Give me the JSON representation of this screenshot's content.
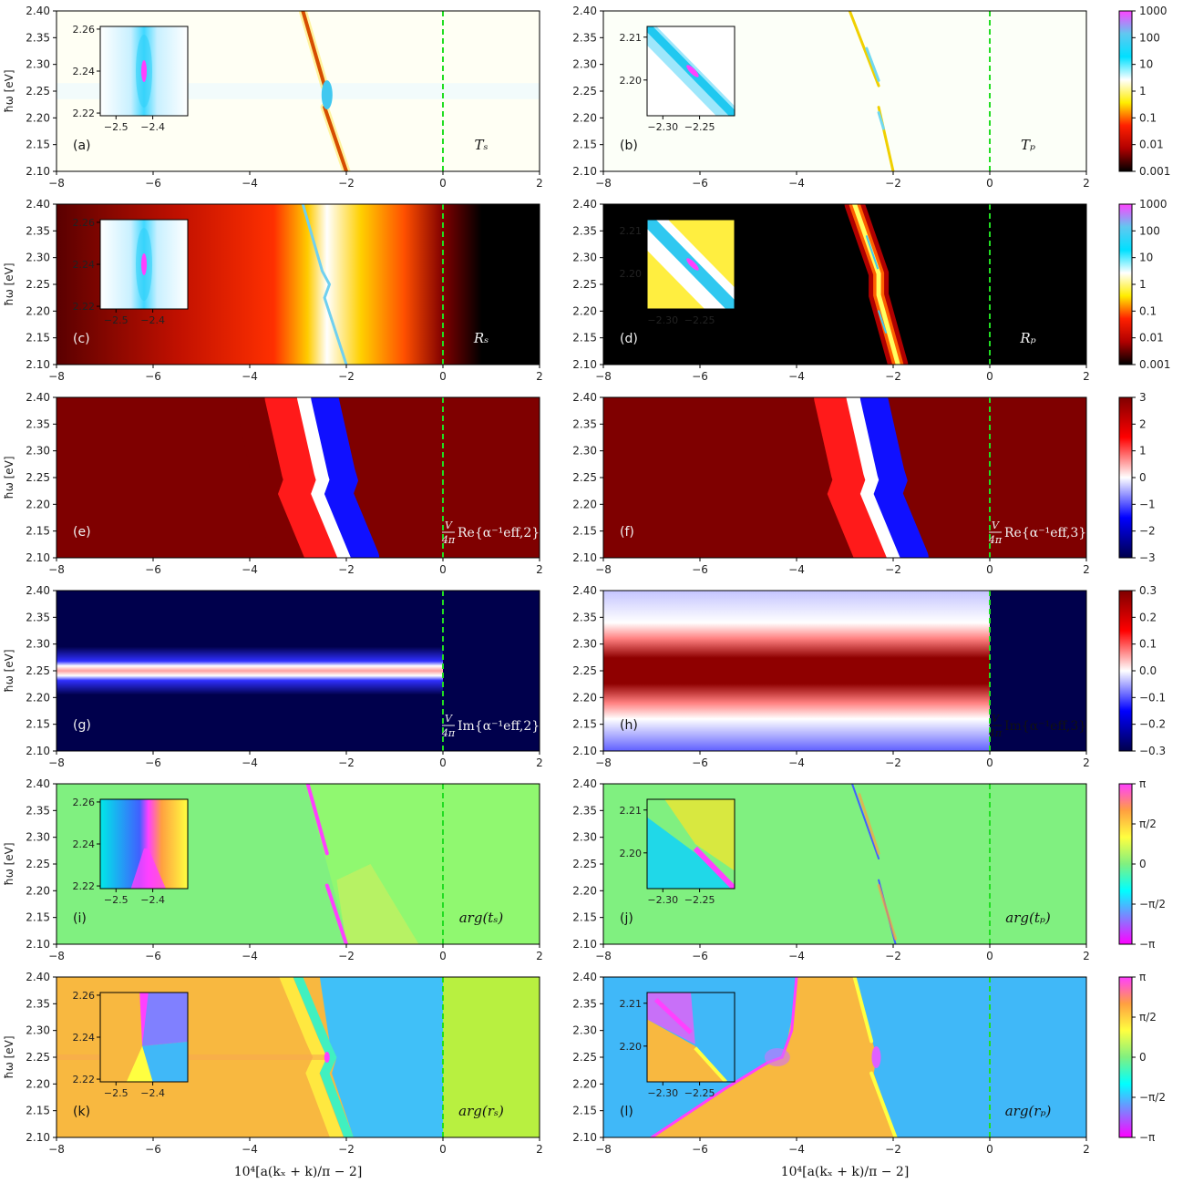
{
  "chart_data": {
    "type": "heatmap",
    "x_axis": {
      "ticks": [
        "−8",
        "−6",
        "−4",
        "−2",
        "0",
        "2"
      ],
      "xlim": [
        -8,
        2
      ],
      "label": "10⁴[a(kₓ + k)/π − 2]"
    },
    "y_axis": {
      "ticks": [
        "2.40",
        "2.35",
        "2.30",
        "2.25",
        "2.20",
        "2.15",
        "2.10"
      ],
      "ylim": [
        2.1,
        2.4
      ],
      "label": "ħω [eV]"
    },
    "marker_line": {
      "x": 0,
      "style": "dashed",
      "color": "#22dd22"
    },
    "panels": [
      {
        "id": "a",
        "tag": "(a)",
        "quantity": "Tₛ",
        "colormap": "log",
        "bg": "#fffff4",
        "quantity_light": false,
        "inset": {
          "xticks": [
            "−2.5",
            "−2.4"
          ],
          "yticks": [
            "2.26",
            "2.24",
            "2.22"
          ],
          "kind": "blueS"
        }
      },
      {
        "id": "b",
        "tag": "(b)",
        "quantity": "Tₚ",
        "colormap": "log",
        "bg": "#fcfff8",
        "quantity_light": false,
        "inset": {
          "xticks": [
            "−2.30",
            "−2.25"
          ],
          "yticks": [
            "2.21",
            "2.20"
          ],
          "kind": "blueP"
        }
      },
      {
        "id": "c",
        "tag": "(c)",
        "quantity": "Rₛ",
        "colormap": "log",
        "bg": "#000000",
        "quantity_light": true,
        "inset": {
          "xticks": [
            "−2.5",
            "−2.4"
          ],
          "yticks": [
            "2.26",
            "2.24",
            "2.22"
          ],
          "kind": "blueS"
        }
      },
      {
        "id": "d",
        "tag": "(d)",
        "quantity": "Rₚ",
        "colormap": "log",
        "bg": "#000000",
        "quantity_light": true,
        "inset": {
          "xticks": [
            "−2.30",
            "−2.25"
          ],
          "yticks": [
            "2.21",
            "2.20"
          ],
          "kind": "blueYellow"
        }
      },
      {
        "id": "e",
        "tag": "(e)",
        "quantity": "V/4π Re{α⁻¹eff,2}",
        "colormap": "diverging",
        "bg": "#7f0000",
        "quantity_light": true
      },
      {
        "id": "f",
        "tag": "(f)",
        "quantity": "V/4π Re{α⁻¹eff,3}",
        "colormap": "diverging",
        "bg": "#7f0000",
        "quantity_light": true
      },
      {
        "id": "g",
        "tag": "(g)",
        "quantity": "V/4π Im{α⁻¹eff,2}",
        "colormap": "diverging",
        "bg": "#00004c",
        "quantity_light": true
      },
      {
        "id": "h",
        "tag": "(h)",
        "quantity": "V/4π Im{α⁻¹eff,3}",
        "colormap": "diverging",
        "bg": "#00004c",
        "quantity_light": false
      },
      {
        "id": "i",
        "tag": "(i)",
        "quantity": "arg(tₛ)",
        "colormap": "phase",
        "bg": "#80f080",
        "quantity_light": false,
        "inset": {
          "xticks": [
            "−2.5",
            "−2.4"
          ],
          "yticks": [
            "2.26",
            "2.24",
            "2.22"
          ],
          "kind": "phaseT"
        }
      },
      {
        "id": "j",
        "tag": "(j)",
        "quantity": "arg(tₚ)",
        "colormap": "phase",
        "bg": "#80f080",
        "quantity_light": false,
        "inset": {
          "xticks": [
            "−2.30",
            "−2.25"
          ],
          "yticks": [
            "2.21",
            "2.20"
          ],
          "kind": "phaseTP"
        }
      },
      {
        "id": "k",
        "tag": "(k)",
        "quantity": "arg(rₛ)",
        "colormap": "phase",
        "bg": "#f8b840",
        "quantity_light": false,
        "inset": {
          "xticks": [
            "−2.5",
            "−2.4"
          ],
          "yticks": [
            "2.26",
            "2.24",
            "2.22"
          ],
          "kind": "phaseR"
        }
      },
      {
        "id": "l",
        "tag": "(l)",
        "quantity": "arg(rₚ)",
        "colormap": "phase",
        "bg": "#40b8f8",
        "quantity_light": false,
        "inset": {
          "xticks": [
            "−2.30",
            "−2.25"
          ],
          "yticks": [
            "2.21",
            "2.20"
          ],
          "kind": "phaseRP"
        }
      }
    ],
    "colorbars": [
      {
        "row": 1,
        "ticks": [
          "1000",
          "100",
          "10",
          "1",
          "0.1",
          "0.01",
          "0.001"
        ]
      },
      {
        "row": 2,
        "ticks": [
          "1000",
          "100",
          "10",
          "1",
          "0.1",
          "0.01",
          "0.001"
        ]
      },
      {
        "row": 3,
        "ticks": [
          "3",
          "2",
          "1",
          "0",
          "−1",
          "−2",
          "−3"
        ]
      },
      {
        "row": 4,
        "ticks": [
          "0.3",
          "0.2",
          "0.1",
          "0.0",
          "−0.1",
          "−0.2",
          "−0.3"
        ]
      },
      {
        "row": 5,
        "ticks": [
          "π",
          "π/2",
          "0",
          "−π/2",
          "−π"
        ]
      },
      {
        "row": 6,
        "ticks": [
          "π",
          "π/2",
          "0",
          "−π/2",
          "−π"
        ]
      }
    ],
    "colors": {
      "log": [
        "#ff44ff",
        "#60c8f0",
        "#00e0ff",
        "#ffffff",
        "#ffee00",
        "#ff2000",
        "#b00000",
        "#000000"
      ],
      "diverging": [
        "#7f0000",
        "#ff0000",
        "#ffffff",
        "#0000ff",
        "#00004c"
      ],
      "phase": [
        "#ff40ff",
        "#ffa040",
        "#ffff40",
        "#80f080",
        "#00ffff",
        "#8080ff",
        "#ff00ff"
      ]
    }
  }
}
